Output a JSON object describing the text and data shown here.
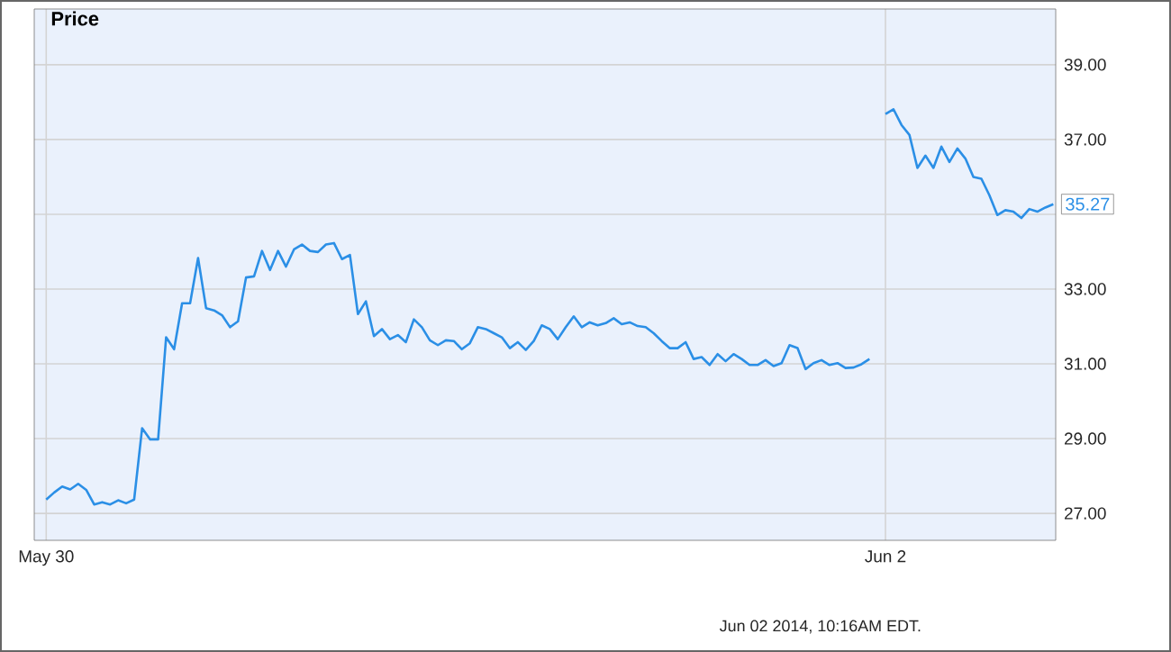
{
  "chart_data": {
    "type": "line",
    "title": "Price",
    "categories": [
      "May 30",
      null,
      null,
      null,
      null,
      null,
      null,
      null,
      null,
      null,
      null,
      null,
      null,
      null,
      null,
      null,
      null,
      null,
      null,
      null,
      null,
      null,
      null,
      null,
      null,
      null,
      null,
      null,
      null,
      null,
      null,
      null,
      null,
      null,
      null,
      null,
      null,
      null,
      null,
      null,
      null,
      null,
      null,
      null,
      null,
      null,
      null,
      null,
      null,
      null,
      null,
      null,
      null,
      null,
      null,
      null,
      null,
      null,
      null,
      null,
      null,
      null,
      null,
      null,
      null,
      null,
      null,
      null,
      null,
      null,
      null,
      null,
      null,
      null,
      null,
      null,
      null,
      null,
      null,
      null,
      null,
      null,
      null,
      null,
      null,
      null,
      null,
      null,
      null,
      null,
      null,
      null,
      null,
      null,
      null,
      null,
      null,
      null,
      null,
      null,
      null,
      null,
      null,
      null,
      null,
      "Jun 2",
      null,
      null,
      null,
      null,
      null,
      null,
      null,
      null,
      null,
      null,
      null,
      null,
      null,
      null,
      null,
      null,
      null,
      null,
      null,
      null,
      null
    ],
    "series": [
      {
        "color": "#2b8fe6",
        "values": [
          27.37,
          27.56,
          27.72,
          27.64,
          27.79,
          27.63,
          27.24,
          27.3,
          27.24,
          27.35,
          27.27,
          27.37,
          29.28,
          28.98,
          28.98,
          31.71,
          31.39,
          32.62,
          32.62,
          33.83,
          32.49,
          32.43,
          32.3,
          31.98,
          32.14,
          33.31,
          33.34,
          34.02,
          33.51,
          34.02,
          33.6,
          34.06,
          34.19,
          34.02,
          33.99,
          34.19,
          34.23,
          33.8,
          33.91,
          32.33,
          32.67,
          31.74,
          31.93,
          31.66,
          31.77,
          31.58,
          32.19,
          31.98,
          31.63,
          31.5,
          31.63,
          31.61,
          31.39,
          31.55,
          31.98,
          31.93,
          31.82,
          31.71,
          31.42,
          31.58,
          31.37,
          31.61,
          32.03,
          31.93,
          31.66,
          31.98,
          32.27,
          31.98,
          32.11,
          32.03,
          32.09,
          32.22,
          32.06,
          32.11,
          32.01,
          31.98,
          31.82,
          31.61,
          31.42,
          31.42,
          31.58,
          31.13,
          31.18,
          30.97,
          31.26,
          31.07,
          31.26,
          31.13,
          30.97,
          30.97,
          31.1,
          30.94,
          31.02,
          31.5,
          31.42,
          30.86,
          31.02,
          31.1,
          30.97,
          31.02,
          30.89,
          30.9,
          30.99,
          31.13,
          null,
          37.68,
          37.81,
          37.39,
          37.12,
          36.24,
          36.57,
          36.24,
          36.81,
          36.4,
          36.76,
          36.49,
          36.0,
          35.95,
          35.51,
          34.98,
          35.11,
          35.07,
          34.9,
          35.14,
          35.07,
          35.18,
          35.27
        ]
      }
    ],
    "ylim": [
      26.28,
      40.49
    ],
    "yticks": [
      {
        "value": 27,
        "label": "27.00"
      },
      {
        "value": 29,
        "label": "29.00"
      },
      {
        "value": 31,
        "label": "31.00"
      },
      {
        "value": 33,
        "label": "33.00"
      },
      {
        "value": 35,
        "label": null
      },
      {
        "value": 37,
        "label": "37.00"
      },
      {
        "value": 39,
        "label": "39.00"
      }
    ],
    "grid": true,
    "marker": "none",
    "line_style": "solid",
    "annotations": [
      "35.27",
      "Jun 02 2014, 10:16AM EDT."
    ]
  }
}
